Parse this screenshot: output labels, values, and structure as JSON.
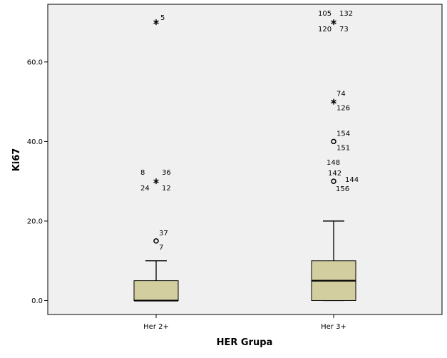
{
  "chart_data": {
    "type": "boxplot",
    "xlabel": "HER Grupa",
    "ylabel": "Ki67",
    "ylim": [
      -3.5,
      74.5
    ],
    "y_ticks": [
      0,
      20,
      40,
      60
    ],
    "y_tick_labels": [
      "0.0",
      "20.0",
      "40.0",
      "60.0"
    ],
    "colors": {
      "plot_background": "#f0f0f0",
      "box_fill": "#d3ce9f",
      "line": "#000000"
    },
    "categories": [
      "Her 2+",
      "Her 3+"
    ],
    "boxes": [
      {
        "category": "Her 2+",
        "whisker_low": 0,
        "q1": 0,
        "median": 0,
        "q3": 5,
        "whisker_high": 10,
        "outliers": [
          {
            "value": 15,
            "marker": "circle",
            "labels": [
              "37",
              "7"
            ]
          },
          {
            "value": 30,
            "marker": "star",
            "labels": [
              "8",
              "36",
              "24",
              "12"
            ]
          },
          {
            "value": 70,
            "marker": "star",
            "labels": [
              "5"
            ]
          }
        ]
      },
      {
        "category": "Her 3+",
        "whisker_low": 0,
        "q1": 0,
        "median": 5,
        "q3": 10,
        "whisker_high": 20,
        "outliers": [
          {
            "value": 30,
            "marker": "circle",
            "labels": [
              "148",
              "142",
              "144",
              "156"
            ]
          },
          {
            "value": 40,
            "marker": "circle",
            "labels": [
              "154",
              "151"
            ]
          },
          {
            "value": 50,
            "marker": "star",
            "labels": [
              "74",
              "126"
            ]
          },
          {
            "value": 70,
            "marker": "star",
            "labels": [
              "105",
              "132",
              "120",
              "73"
            ]
          }
        ]
      }
    ]
  }
}
